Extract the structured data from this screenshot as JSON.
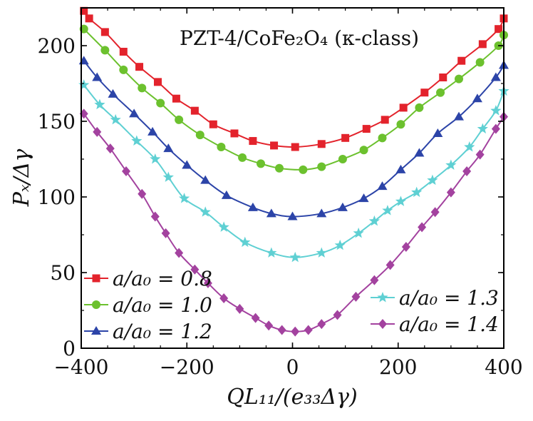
{
  "chart_data": {
    "type": "line",
    "title": "PZT-4/CoFe₂O₄ (κ-class)",
    "xlabel": "QL₁₁/(e₃₃Δγ)",
    "ylabel": "Pₓ/Δγ",
    "xlim": [
      -400,
      400
    ],
    "ylim": [
      0,
      225
    ],
    "xticks": [
      -400,
      -200,
      0,
      200,
      400
    ],
    "xtick_labels": [
      "−400",
      "−200",
      "0",
      "200",
      "400"
    ],
    "yticks": [
      0,
      50,
      100,
      150,
      200
    ],
    "ytick_labels": [
      "0",
      "50",
      "100",
      "150",
      "200"
    ],
    "grid": false,
    "series": [
      {
        "name": "a/a₀ = 0.8",
        "color": "#e3232c",
        "marker": "square",
        "x": [
          -395,
          -385,
          -355,
          -320,
          -290,
          -255,
          -220,
          -185,
          -150,
          -110,
          -75,
          -35,
          5,
          55,
          100,
          140,
          175,
          210,
          250,
          285,
          320,
          360,
          390,
          400
        ],
        "y": [
          223,
          218,
          209,
          196,
          186,
          176,
          165,
          157,
          148,
          142,
          137,
          134,
          133,
          135,
          139,
          145,
          151,
          159,
          169,
          179,
          190,
          201,
          211,
          218
        ]
      },
      {
        "name": "a/a₀ = 1.0",
        "color": "#6cc12e",
        "marker": "circle",
        "x": [
          -395,
          -355,
          -320,
          -285,
          -250,
          -215,
          -175,
          -135,
          -95,
          -60,
          -25,
          20,
          55,
          95,
          135,
          170,
          205,
          240,
          280,
          315,
          355,
          390,
          400
        ],
        "y": [
          211,
          197,
          184,
          172,
          162,
          151,
          141,
          133,
          126,
          122,
          119,
          118,
          120,
          125,
          131,
          139,
          148,
          159,
          169,
          178,
          189,
          200,
          207
        ]
      },
      {
        "name": "a/a₀ = 1.2",
        "color": "#2c44a8",
        "marker": "triangle",
        "x": [
          -395,
          -370,
          -340,
          -300,
          -265,
          -235,
          -200,
          -165,
          -125,
          -75,
          -40,
          0,
          55,
          95,
          135,
          170,
          205,
          240,
          275,
          315,
          350,
          385,
          400
        ],
        "y": [
          190,
          179,
          168,
          155,
          143,
          132,
          121,
          111,
          101,
          93,
          89,
          87,
          89,
          93,
          99,
          107,
          118,
          129,
          142,
          153,
          165,
          179,
          187
        ]
      },
      {
        "name": "a/a₀ = 1.3",
        "color": "#5fd0d3",
        "marker": "star",
        "x": [
          -395,
          -365,
          -335,
          -295,
          -260,
          -235,
          -205,
          -165,
          -130,
          -90,
          -40,
          5,
          55,
          90,
          125,
          155,
          180,
          205,
          235,
          265,
          300,
          335,
          360,
          385,
          400
        ],
        "y": [
          174,
          161,
          151,
          137,
          125,
          113,
          99,
          90,
          80,
          70,
          63,
          60,
          63,
          68,
          76,
          84,
          91,
          97,
          103,
          111,
          121,
          133,
          145,
          157,
          170
        ]
      },
      {
        "name": "a/a₀ = 1.4",
        "color": "#a3429f",
        "marker": "diamond",
        "x": [
          -395,
          -370,
          -345,
          -315,
          -285,
          -260,
          -240,
          -215,
          -185,
          -160,
          -130,
          -100,
          -70,
          -45,
          -20,
          5,
          30,
          55,
          85,
          120,
          155,
          185,
          215,
          245,
          270,
          300,
          330,
          355,
          385,
          400
        ],
        "y": [
          155,
          143,
          132,
          117,
          102,
          87,
          76,
          63,
          52,
          43,
          33,
          26,
          20,
          15,
          12,
          11,
          12,
          16,
          22,
          34,
          45,
          55,
          67,
          80,
          90,
          103,
          117,
          128,
          145,
          153
        ]
      }
    ],
    "legends": [
      {
        "position": "lower-left",
        "entries": [
          "a/a₀ = 0.8",
          "a/a₀ = 1.0",
          "a/a₀ = 1.2"
        ]
      },
      {
        "position": "lower-right",
        "entries": [
          "a/a₀ = 1.3",
          "a/a₀ = 1.4"
        ]
      }
    ]
  }
}
